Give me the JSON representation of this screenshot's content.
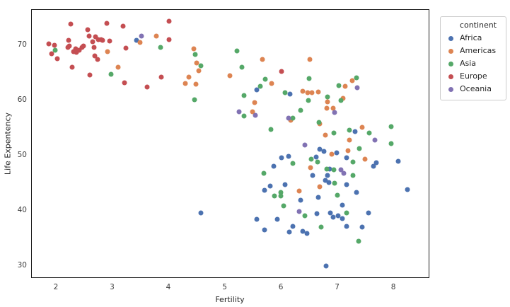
{
  "chart_data": {
    "type": "scatter",
    "title": "",
    "xlabel": "Fertility",
    "ylabel": "Life Expentency",
    "x_ticks": [
      2,
      3,
      4,
      5,
      6,
      7,
      8
    ],
    "y_ticks": [
      30,
      40,
      50,
      60,
      70
    ],
    "xlim": [
      1.56,
      8.64
    ],
    "ylim": [
      27.7,
      76.4
    ],
    "grid": false,
    "legend_title": "continent",
    "legend_position": "outside upper right",
    "marker_size_px": 7,
    "series": [
      {
        "name": "Africa",
        "color": "#4c72b0",
        "points": [
          [
            3.42,
            70.9
          ],
          [
            5.56,
            61.9
          ],
          [
            6.15,
            61.2
          ],
          [
            6.0,
            49.6
          ],
          [
            6.13,
            49.9
          ],
          [
            5.86,
            48.1
          ],
          [
            5.8,
            44.5
          ],
          [
            6.06,
            44.7
          ],
          [
            5.7,
            43.7
          ],
          [
            7.31,
            54.4
          ],
          [
            6.68,
            51.2
          ],
          [
            6.75,
            50.8
          ],
          [
            6.98,
            50.5
          ],
          [
            7.16,
            49.6
          ],
          [
            6.62,
            49.7
          ],
          [
            7.69,
            48.7
          ],
          [
            7.64,
            48.1
          ],
          [
            8.08,
            49.0
          ],
          [
            6.55,
            46.4
          ],
          [
            6.86,
            47.6
          ],
          [
            6.82,
            46.4
          ],
          [
            6.78,
            45.5
          ],
          [
            6.84,
            45.1
          ],
          [
            7.16,
            44.7
          ],
          [
            8.24,
            43.8
          ],
          [
            4.57,
            39.6
          ],
          [
            5.56,
            38.5
          ],
          [
            5.92,
            38.5
          ],
          [
            5.7,
            36.5
          ],
          [
            6.14,
            36.2
          ],
          [
            6.2,
            37.2
          ],
          [
            6.65,
            42.4
          ],
          [
            7.33,
            43.3
          ],
          [
            7.08,
            41.0
          ],
          [
            6.34,
            41.9
          ],
          [
            6.87,
            39.6
          ],
          [
            6.92,
            38.8
          ],
          [
            7.01,
            39.1
          ],
          [
            7.08,
            38.6
          ],
          [
            6.63,
            39.5
          ],
          [
            7.55,
            39.6
          ],
          [
            7.16,
            37.2
          ],
          [
            7.43,
            37.1
          ],
          [
            6.38,
            36.3
          ],
          [
            6.45,
            35.9
          ],
          [
            6.79,
            30.0
          ]
        ]
      },
      {
        "name": "Americas",
        "color": "#dd8452",
        "points": [
          [
            2.91,
            68.8
          ],
          [
            3.09,
            66.0
          ],
          [
            3.48,
            70.5
          ],
          [
            3.77,
            71.7
          ],
          [
            4.44,
            69.4
          ],
          [
            4.49,
            66.8
          ],
          [
            4.53,
            65.4
          ],
          [
            4.35,
            64.2
          ],
          [
            4.29,
            63.1
          ],
          [
            4.48,
            62.9
          ],
          [
            5.08,
            64.5
          ],
          [
            5.66,
            67.4
          ],
          [
            5.82,
            63.1
          ],
          [
            6.5,
            67.4
          ],
          [
            6.38,
            61.7
          ],
          [
            6.47,
            61.4
          ],
          [
            6.54,
            61.4
          ],
          [
            6.65,
            61.5
          ],
          [
            7.13,
            62.6
          ],
          [
            7.26,
            63.6
          ],
          [
            7.09,
            60.4
          ],
          [
            5.52,
            59.6
          ],
          [
            5.48,
            57.9
          ],
          [
            6.16,
            56.4
          ],
          [
            6.82,
            59.7
          ],
          [
            6.81,
            58.6
          ],
          [
            6.92,
            58.6
          ],
          [
            6.68,
            55.8
          ],
          [
            6.78,
            53.7
          ],
          [
            7.43,
            55.1
          ],
          [
            7.21,
            52.8
          ],
          [
            7.18,
            50.9
          ],
          [
            6.89,
            50.3
          ],
          [
            7.48,
            49.4
          ],
          [
            6.52,
            47.8
          ],
          [
            6.68,
            44.4
          ],
          [
            6.31,
            43.6
          ]
        ]
      },
      {
        "name": "Asia",
        "color": "#55a868",
        "points": [
          [
            1.97,
            69.1
          ],
          [
            2.97,
            64.7
          ],
          [
            3.85,
            69.6
          ],
          [
            4.47,
            68.3
          ],
          [
            4.57,
            66.3
          ],
          [
            5.21,
            69.0
          ],
          [
            5.3,
            66.0
          ],
          [
            5.71,
            63.8
          ],
          [
            5.62,
            62.6
          ],
          [
            5.33,
            60.9
          ],
          [
            6.06,
            61.4
          ],
          [
            4.45,
            60.1
          ],
          [
            6.49,
            64.0
          ],
          [
            7.33,
            64.1
          ],
          [
            7.02,
            62.7
          ],
          [
            6.82,
            60.6
          ],
          [
            6.48,
            60.0
          ],
          [
            5.33,
            57.2
          ],
          [
            6.34,
            58.2
          ],
          [
            6.2,
            56.8
          ],
          [
            5.81,
            54.7
          ],
          [
            6.2,
            48.6
          ],
          [
            5.69,
            46.8
          ],
          [
            7.06,
            60.0
          ],
          [
            6.67,
            56.0
          ],
          [
            6.93,
            54.1
          ],
          [
            7.21,
            54.6
          ],
          [
            7.56,
            54.1
          ],
          [
            7.95,
            55.3
          ],
          [
            7.95,
            52.2
          ],
          [
            7.38,
            51.3
          ],
          [
            7.27,
            48.8
          ],
          [
            6.53,
            49.4
          ],
          [
            6.64,
            48.8
          ],
          [
            6.81,
            47.6
          ],
          [
            6.93,
            47.4
          ],
          [
            7.27,
            46.4
          ],
          [
            6.94,
            45.0
          ],
          [
            5.87,
            42.7
          ],
          [
            5.99,
            43.3
          ],
          [
            5.99,
            42.7
          ],
          [
            6.04,
            40.9
          ],
          [
            6.99,
            42.8
          ],
          [
            6.42,
            39.1
          ],
          [
            7.16,
            39.6
          ],
          [
            6.7,
            37.1
          ],
          [
            7.37,
            34.5
          ]
        ]
      },
      {
        "name": "Europe",
        "color": "#c44e52",
        "points": [
          [
            2.25,
            73.8
          ],
          [
            2.89,
            74.0
          ],
          [
            3.18,
            73.5
          ],
          [
            2.55,
            72.8
          ],
          [
            2.58,
            71.7
          ],
          [
            2.69,
            71.5
          ],
          [
            2.79,
            71.0
          ],
          [
            2.82,
            70.9
          ],
          [
            2.94,
            70.8
          ],
          [
            1.86,
            70.3
          ],
          [
            1.96,
            70.0
          ],
          [
            2.21,
            70.9
          ],
          [
            2.23,
            69.9
          ],
          [
            2.2,
            69.6
          ],
          [
            2.34,
            69.4
          ],
          [
            2.4,
            69.1
          ],
          [
            2.45,
            69.6
          ],
          [
            2.48,
            69.9
          ],
          [
            2.64,
            70.6
          ],
          [
            2.67,
            69.6
          ],
          [
            2.74,
            71.0
          ],
          [
            2.3,
            68.8
          ],
          [
            2.35,
            68.7
          ],
          [
            3.23,
            69.5
          ],
          [
            1.91,
            68.5
          ],
          [
            2.01,
            67.6
          ],
          [
            2.68,
            68.1
          ],
          [
            2.73,
            67.4
          ],
          [
            2.28,
            66.0
          ],
          [
            2.59,
            64.6
          ],
          [
            3.21,
            63.2
          ],
          [
            3.61,
            62.4
          ],
          [
            3.86,
            64.2
          ],
          [
            4.0,
            74.4
          ],
          [
            4.0,
            71.0
          ],
          [
            6.0,
            65.3
          ]
        ]
      },
      {
        "name": "Oceania",
        "color": "#8172b3",
        "points": [
          [
            3.51,
            71.7
          ],
          [
            7.35,
            62.3
          ],
          [
            5.25,
            57.9
          ],
          [
            5.53,
            57.3
          ],
          [
            6.13,
            56.8
          ],
          [
            6.94,
            57.8
          ],
          [
            6.41,
            51.9
          ],
          [
            7.66,
            52.8
          ],
          [
            7.06,
            47.4
          ],
          [
            7.11,
            46.8
          ],
          [
            6.31,
            39.9
          ]
        ]
      }
    ]
  }
}
